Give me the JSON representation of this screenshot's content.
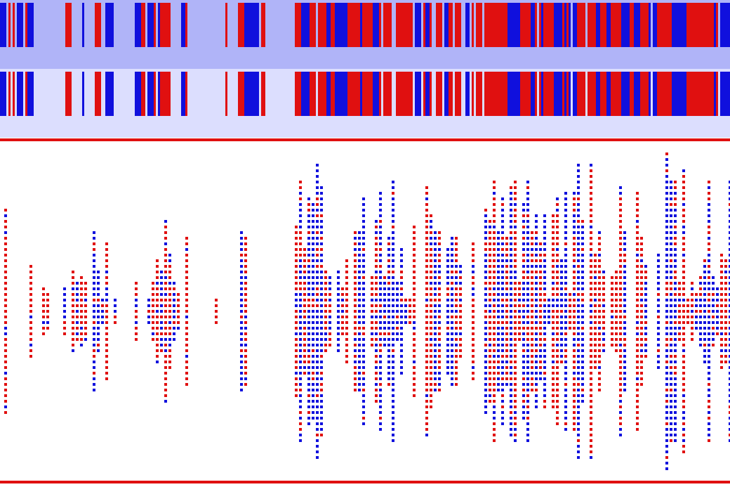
{
  "colors": {
    "red": "#e01010",
    "blue": "#1010dd",
    "track_top_bg": "#b0b4f8",
    "track_bottom_bg": "#dcdefe",
    "panel_bg": "#ffffff",
    "panel_border": "#e01010"
  }
}
